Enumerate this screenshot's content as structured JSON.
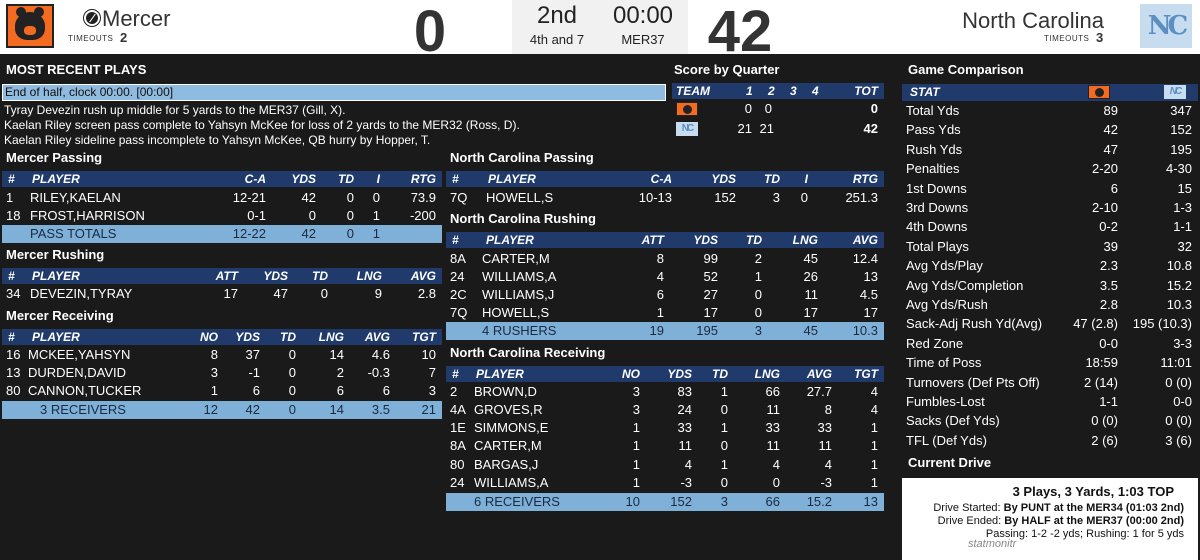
{
  "header": {
    "home": {
      "name": "Mercer",
      "timeouts_label": "TIMEOUTS",
      "timeouts": "2",
      "score": "0"
    },
    "away": {
      "name": "North Carolina",
      "timeouts_label": "TIMEOUTS",
      "timeouts": "3",
      "score": "42"
    },
    "period": "2nd",
    "clock": "00:00",
    "down_distance": "4th and 7",
    "ball_on": "MER37"
  },
  "plays": {
    "title": "MOST RECENT PLAYS",
    "items": [
      "End of half, clock 00:00. [00:00]",
      "Tyray Devezin rush up middle for 5 yards to the MER37 (Gill, X).",
      "Kaelan Riley screen pass complete to Yahsyn McKee for loss of 2 yards to the MER32 (Ross, D).",
      "Kaelan Riley sideline pass incomplete to Yahsyn McKee, QB hurry by Hopper, T."
    ]
  },
  "score_by_quarter": {
    "title": "Score by Quarter",
    "headers": [
      "TEAM",
      "1",
      "2",
      "3",
      "4",
      "TOT"
    ],
    "rows": [
      {
        "q": [
          "0",
          "0",
          "",
          ""
        ],
        "tot": "0"
      },
      {
        "q": [
          "21",
          "21",
          "",
          ""
        ],
        "tot": "42"
      }
    ]
  },
  "mercer_passing": {
    "title": "Mercer Passing",
    "headers": [
      "#",
      "PLAYER",
      "C-A",
      "YDS",
      "TD",
      "I",
      "RTG"
    ],
    "rows": [
      [
        "1",
        "RILEY,KAELAN",
        "12-21",
        "42",
        "0",
        "0",
        "73.9"
      ],
      [
        "18",
        "FROST,HARRISON",
        "0-1",
        "0",
        "0",
        "1",
        "-200"
      ]
    ],
    "total": [
      "PASS TOTALS",
      "12-22",
      "42",
      "0",
      "1"
    ]
  },
  "mercer_rushing": {
    "title": "Mercer Rushing",
    "headers": [
      "#",
      "PLAYER",
      "ATT",
      "YDS",
      "TD",
      "LNG",
      "AVG"
    ],
    "rows": [
      [
        "34",
        "DEVEZIN,TYRAY",
        "17",
        "47",
        "0",
        "9",
        "2.8"
      ]
    ]
  },
  "mercer_receiving": {
    "title": "Mercer Receiving",
    "headers": [
      "#",
      "PLAYER",
      "NO",
      "YDS",
      "TD",
      "LNG",
      "AVG",
      "TGT"
    ],
    "rows": [
      [
        "16",
        "MCKEE,YAHSYN",
        "8",
        "37",
        "0",
        "14",
        "4.6",
        "10"
      ],
      [
        "13",
        "DURDEN,DAVID",
        "3",
        "-1",
        "0",
        "2",
        "-0.3",
        "7"
      ],
      [
        "80",
        "CANNON,TUCKER",
        "1",
        "6",
        "0",
        "6",
        "6",
        "3"
      ]
    ],
    "total": [
      "3 RECEIVERS",
      "12",
      "42",
      "0",
      "14",
      "3.5",
      "21"
    ]
  },
  "nc_passing": {
    "title": "North Carolina Passing",
    "headers": [
      "#",
      "PLAYER",
      "C-A",
      "YDS",
      "TD",
      "I",
      "RTG"
    ],
    "rows": [
      [
        "7Q",
        "HOWELL,S",
        "10-13",
        "152",
        "3",
        "0",
        "251.3"
      ]
    ]
  },
  "nc_rushing": {
    "title": "North Carolina Rushing",
    "headers": [
      "#",
      "PLAYER",
      "ATT",
      "YDS",
      "TD",
      "LNG",
      "AVG"
    ],
    "rows": [
      [
        "8A",
        "CARTER,M",
        "8",
        "99",
        "2",
        "45",
        "12.4"
      ],
      [
        "24",
        "WILLIAMS,A",
        "4",
        "52",
        "1",
        "26",
        "13"
      ],
      [
        "2C",
        "WILLIAMS,J",
        "6",
        "27",
        "0",
        "11",
        "4.5"
      ],
      [
        "7Q",
        "HOWELL,S",
        "1",
        "17",
        "0",
        "17",
        "17"
      ]
    ],
    "total": [
      "4 RUSHERS",
      "19",
      "195",
      "3",
      "45",
      "10.3"
    ]
  },
  "nc_receiving": {
    "title": "North Carolina Receiving",
    "headers": [
      "#",
      "PLAYER",
      "NO",
      "YDS",
      "TD",
      "LNG",
      "AVG",
      "TGT"
    ],
    "rows": [
      [
        "2",
        "BROWN,D",
        "3",
        "83",
        "1",
        "66",
        "27.7",
        "4"
      ],
      [
        "4A",
        "GROVES,R",
        "3",
        "24",
        "0",
        "11",
        "8",
        "4"
      ],
      [
        "1E",
        "SIMMONS,E",
        "1",
        "33",
        "1",
        "33",
        "33",
        "1"
      ],
      [
        "8A",
        "CARTER,M",
        "1",
        "11",
        "0",
        "11",
        "11",
        "1"
      ],
      [
        "80",
        "BARGAS,J",
        "1",
        "4",
        "1",
        "4",
        "4",
        "1"
      ],
      [
        "24",
        "WILLIAMS,A",
        "1",
        "-3",
        "0",
        "0",
        "-3",
        "1"
      ]
    ],
    "total": [
      "6 RECEIVERS",
      "10",
      "152",
      "3",
      "66",
      "15.2",
      "13"
    ]
  },
  "game_comparison": {
    "title": "Game Comparison",
    "stat_header": "STAT",
    "rows": [
      [
        "Total Yds",
        "89",
        "347"
      ],
      [
        "Pass Yds",
        "42",
        "152"
      ],
      [
        "Rush Yds",
        "47",
        "195"
      ],
      [
        "Penalties",
        "2-20",
        "4-30"
      ],
      [
        "1st Downs",
        "6",
        "15"
      ],
      [
        "3rd Downs",
        "2-10",
        "1-3"
      ],
      [
        "4th Downs",
        "0-2",
        "1-1"
      ],
      [
        "Total Plays",
        "39",
        "32"
      ],
      [
        "Avg Yds/Play",
        "2.3",
        "10.8"
      ],
      [
        "Avg Yds/Completion",
        "3.5",
        "15.2"
      ],
      [
        "Avg Yds/Rush",
        "2.8",
        "10.3"
      ],
      [
        "Sack-Adj Rush Yd(Avg)",
        "47 (2.8)",
        "195 (10.3)"
      ],
      [
        "Red Zone",
        "0-0",
        "3-3"
      ],
      [
        "Time of Poss",
        "18:59",
        "11:01"
      ],
      [
        "Turnovers (Def Pts Off)",
        "2 (14)",
        "0 (0)"
      ],
      [
        "Fumbles-Lost",
        "1-1",
        "0-0"
      ],
      [
        "Sacks (Def Yds)",
        "0 (0)",
        "0 (0)"
      ],
      [
        "TFL (Def Yds)",
        "2 (6)",
        "3 (6)"
      ]
    ]
  },
  "current_drive": {
    "title": "Current Drive",
    "summary": "3 Plays, 3 Yards, 1:03 TOP",
    "started_label": "Drive Started:",
    "started": "By PUNT at the MER34 (01:03 2nd)",
    "ended_label": "Drive Ended:",
    "ended": "By HALF at the MER37 (00:00 2nd)",
    "stats": "Passing: 1-2 -2 yds; Rushing: 1 for 5 yds"
  },
  "watermark": "statmonitr"
}
